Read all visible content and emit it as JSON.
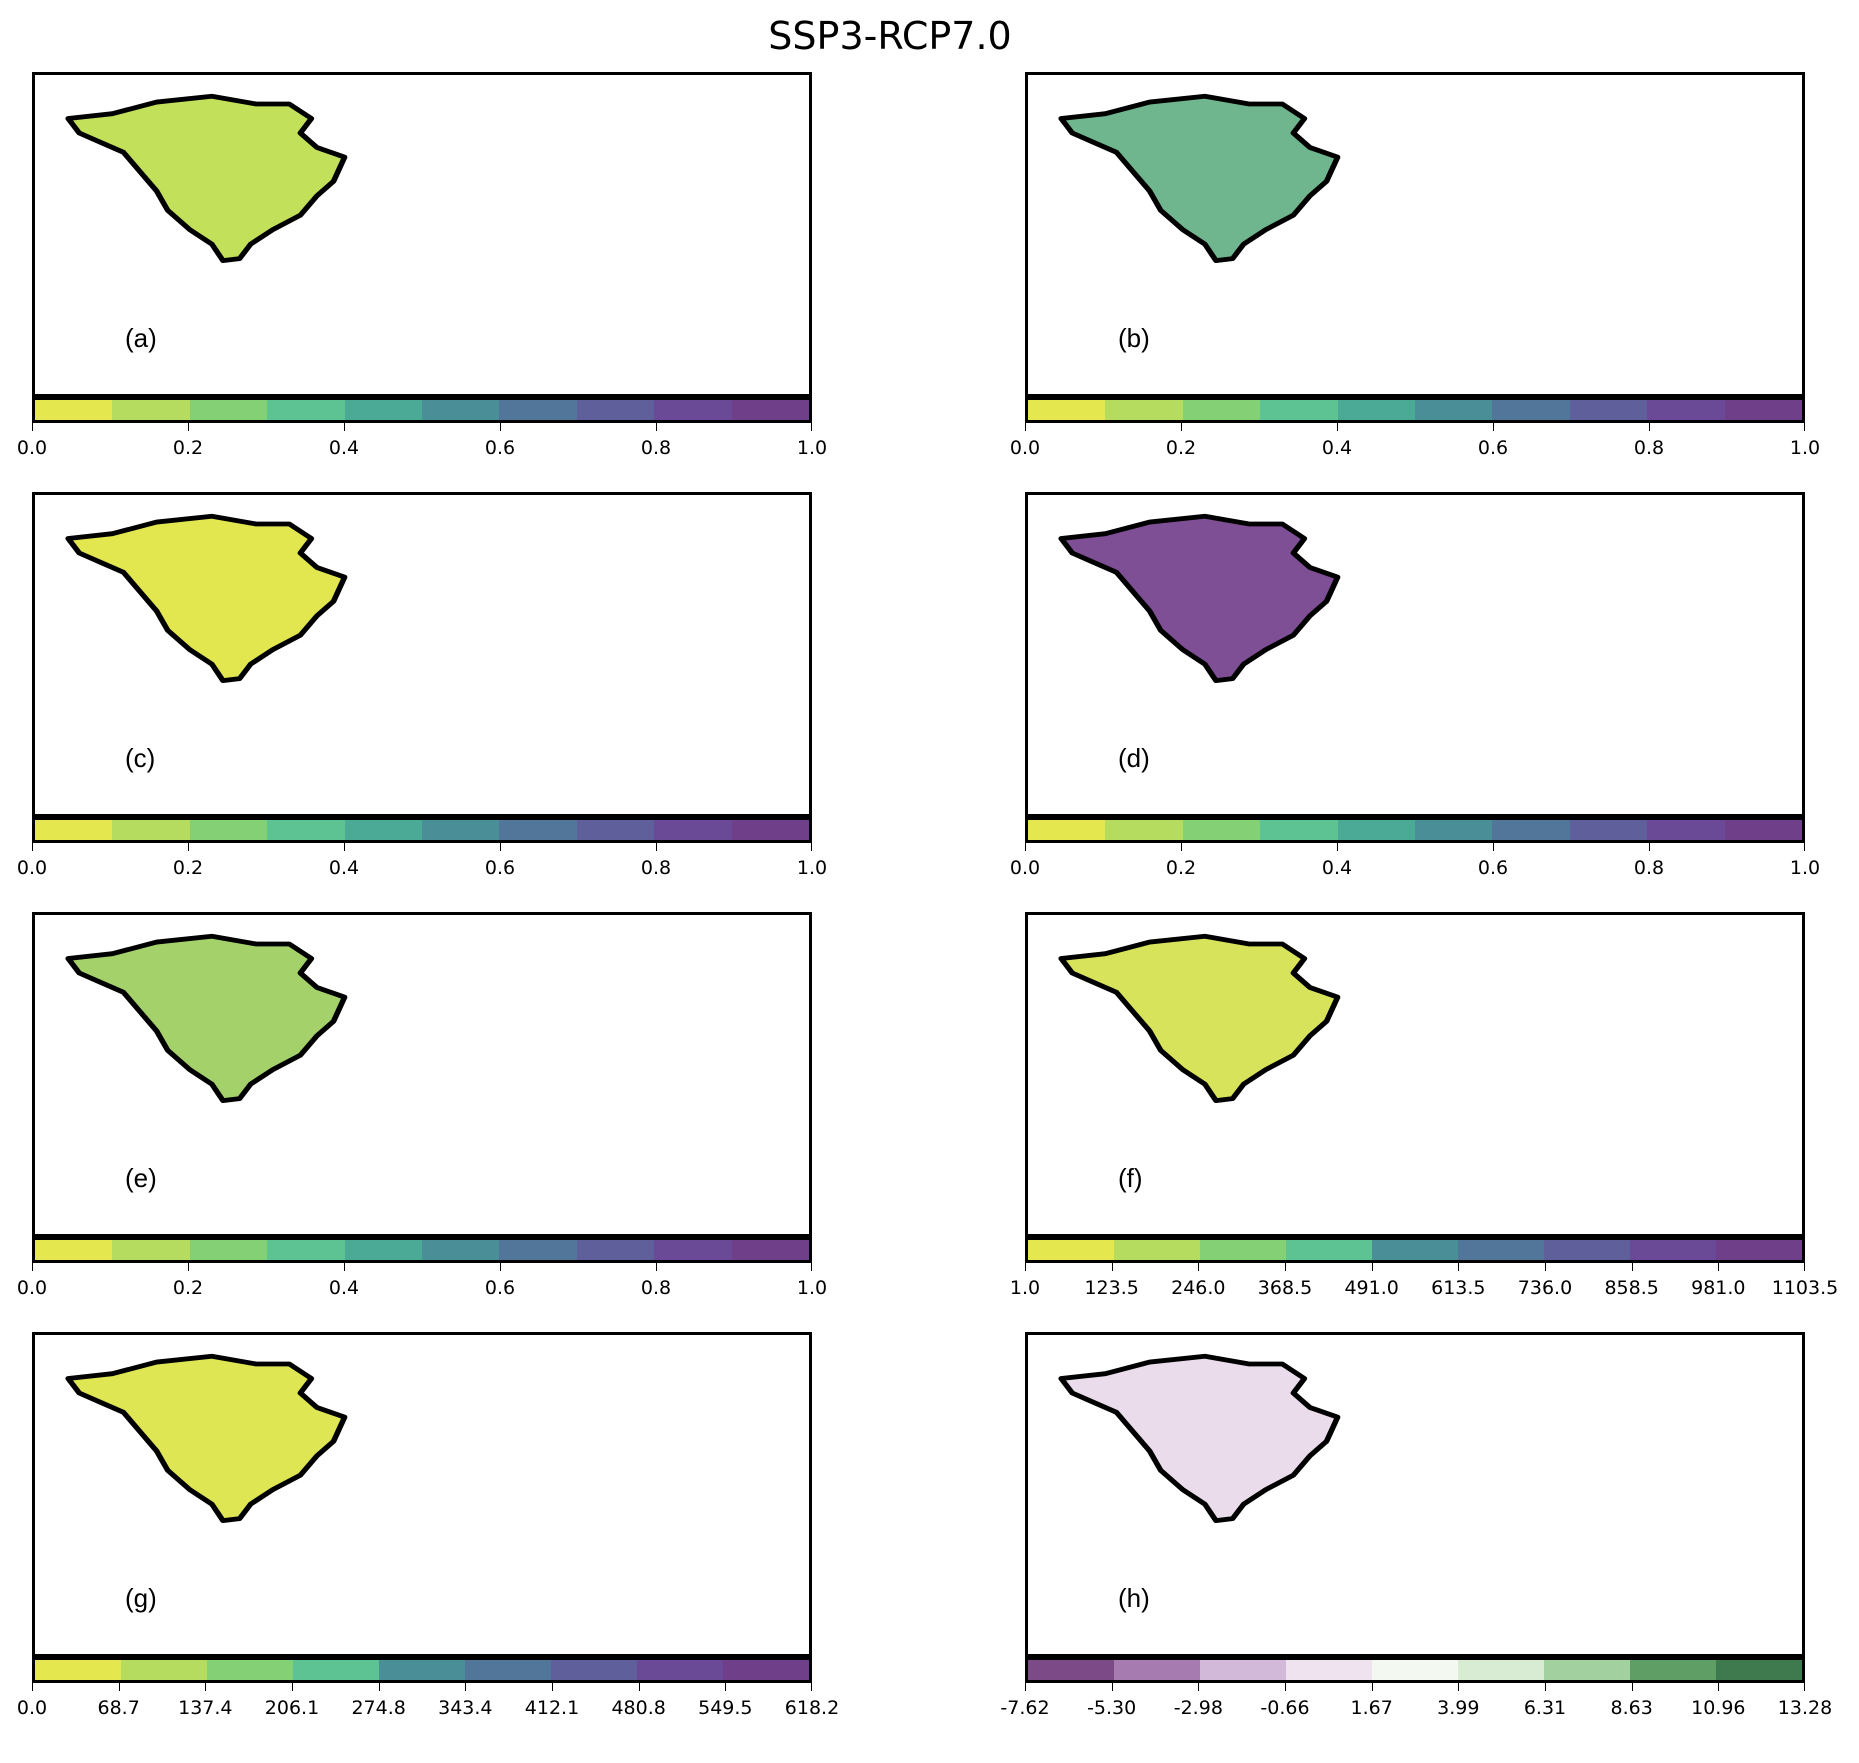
{
  "title": "SSP3-RCP7.0",
  "colors": {
    "viridis_r": [
      "#e4e84e",
      "#b5dc5f",
      "#84d074",
      "#5ec393",
      "#4aaa96",
      "#4a8f97",
      "#52769a",
      "#5e5f9b",
      "#6a4a96",
      "#6f3f8a"
    ],
    "purple_green": [
      "#7c4a86",
      "#a57bb0",
      "#d2b9d9",
      "#eee3ef",
      "#f8f3f8",
      "#f3f8f1",
      "#d7ecd3",
      "#a3d09f",
      "#5f9e64",
      "#3f7a4f"
    ]
  },
  "panels": [
    {
      "label": "(a)",
      "ticks": [
        "0.0",
        "0.2",
        "0.4",
        "0.6",
        "0.8",
        "1.0"
      ],
      "palette": "viridis_r",
      "levels": 10
    },
    {
      "label": "(b)",
      "ticks": [
        "0.0",
        "0.2",
        "0.4",
        "0.6",
        "0.8",
        "1.0"
      ],
      "palette": "viridis_r",
      "levels": 10
    },
    {
      "label": "(c)",
      "ticks": [
        "0.0",
        "0.2",
        "0.4",
        "0.6",
        "0.8",
        "1.0"
      ],
      "palette": "viridis_r",
      "levels": 10
    },
    {
      "label": "(d)",
      "ticks": [
        "0.0",
        "0.2",
        "0.4",
        "0.6",
        "0.8",
        "1.0"
      ],
      "palette": "viridis_r",
      "levels": 10
    },
    {
      "label": "(e)",
      "ticks": [
        "0.0",
        "0.2",
        "0.4",
        "0.6",
        "0.8",
        "1.0"
      ],
      "palette": "viridis_r",
      "levels": 10
    },
    {
      "label": "(f)",
      "ticks": [
        "1.0",
        "123.5",
        "246.0",
        "368.5",
        "491.0",
        "613.5",
        "736.0",
        "858.5",
        "981.0",
        "1103.5"
      ],
      "palette": "viridis_r",
      "levels": 9
    },
    {
      "label": "(g)",
      "ticks": [
        "0.0",
        "68.7",
        "137.4",
        "206.1",
        "274.8",
        "343.4",
        "412.1",
        "480.8",
        "549.5",
        "618.2"
      ],
      "palette": "viridis_r",
      "levels": 9
    },
    {
      "label": "(h)",
      "ticks": [
        "-7.62",
        "-5.30",
        "-2.98",
        "-0.66",
        "1.67",
        "3.99",
        "6.31",
        "8.63",
        "10.96",
        "13.28"
      ],
      "palette": "purple_green",
      "levels": 9
    }
  ]
}
